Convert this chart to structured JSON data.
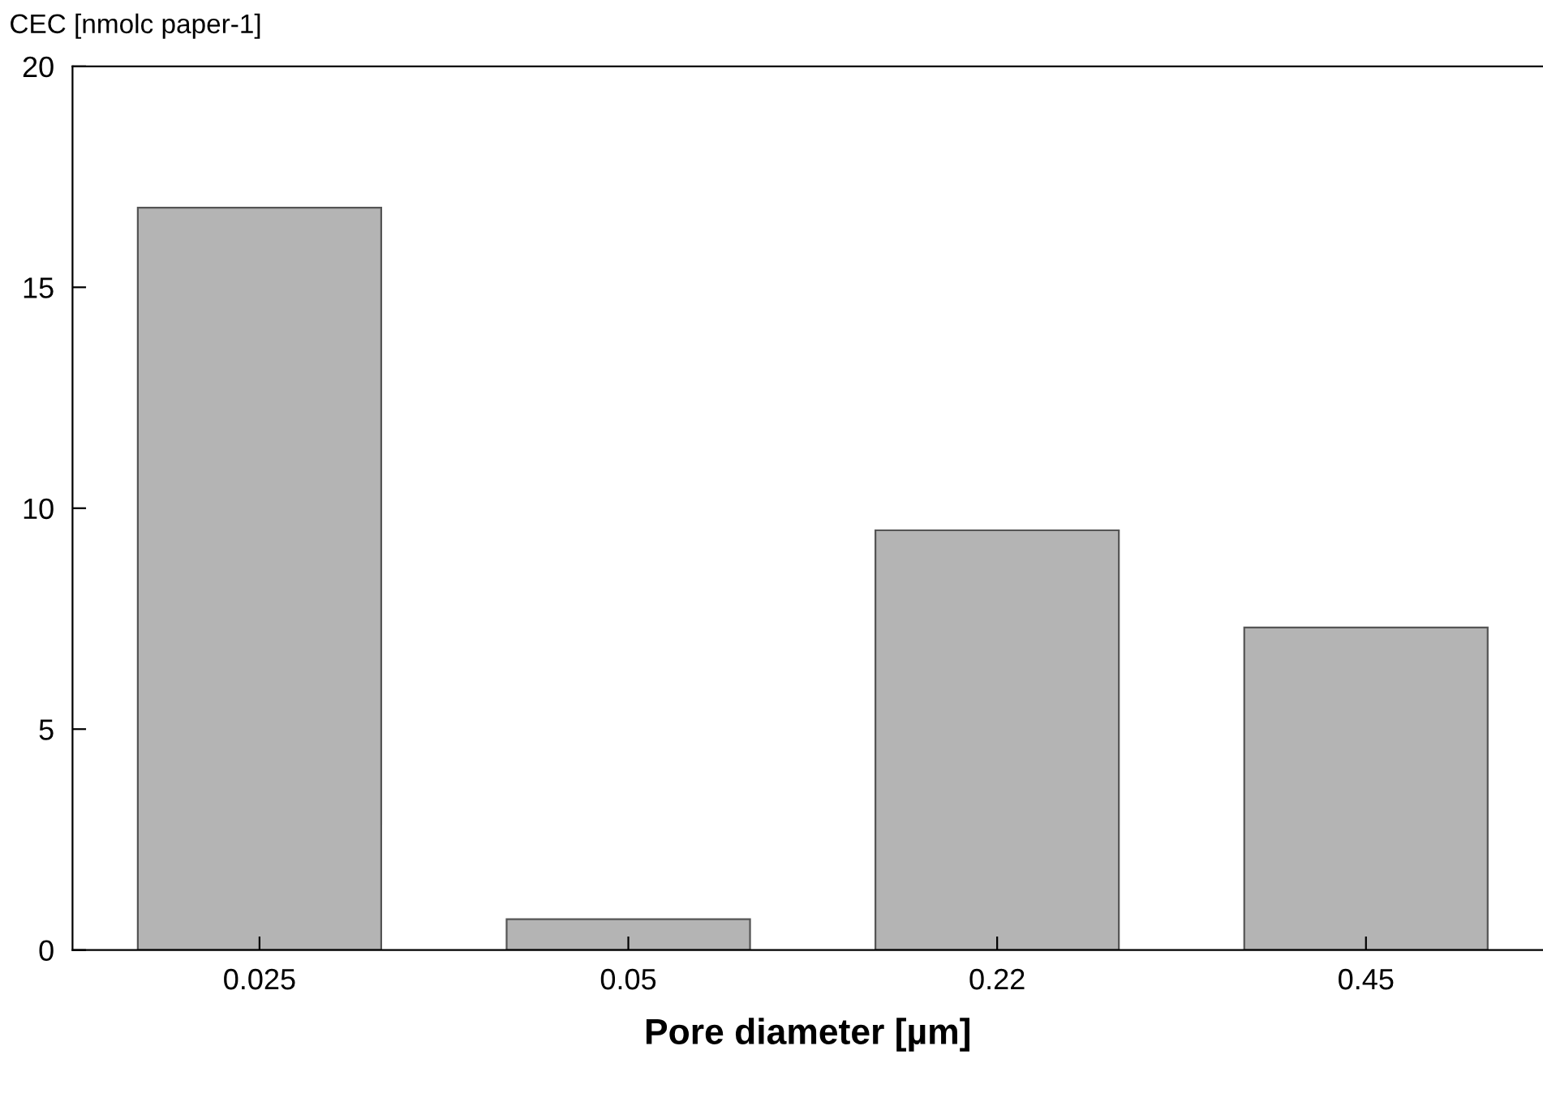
{
  "chart_data": {
    "type": "bar",
    "ylabel": "CEC [nmolc paper-1]",
    "xlabel": "Pore diameter [µm]",
    "categories": [
      "0.025",
      "0.05",
      "0.22",
      "0.45"
    ],
    "values": [
      16.8,
      0.7,
      9.5,
      7.3
    ],
    "color": "#b4b4b4",
    "ylim": [
      0,
      20
    ],
    "yticks": [
      0,
      5,
      10,
      15,
      20
    ],
    "grid": false
  }
}
